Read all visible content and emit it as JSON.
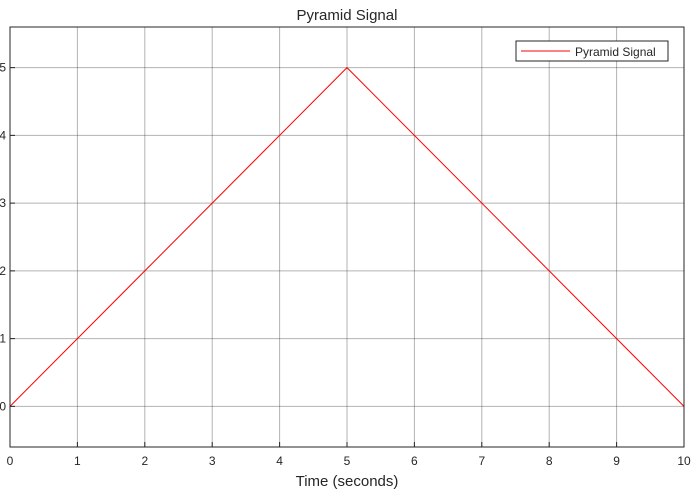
{
  "chart_data": {
    "type": "line",
    "title": "Pyramid Signal",
    "xlabel": "Time (seconds)",
    "ylabel": "",
    "xlim": [
      0,
      10
    ],
    "ylim": [
      -0.6,
      5.6
    ],
    "xticks": [
      0,
      1,
      2,
      3,
      4,
      5,
      6,
      7,
      8,
      9,
      10
    ],
    "yticks": [
      0,
      1,
      2,
      3,
      4,
      5
    ],
    "grid": true,
    "legend": "top-right",
    "series": [
      {
        "name": "Pyramid Signal",
        "color": "#ff0000",
        "x": [
          0,
          5,
          10
        ],
        "y": [
          0,
          5,
          0
        ]
      }
    ]
  }
}
